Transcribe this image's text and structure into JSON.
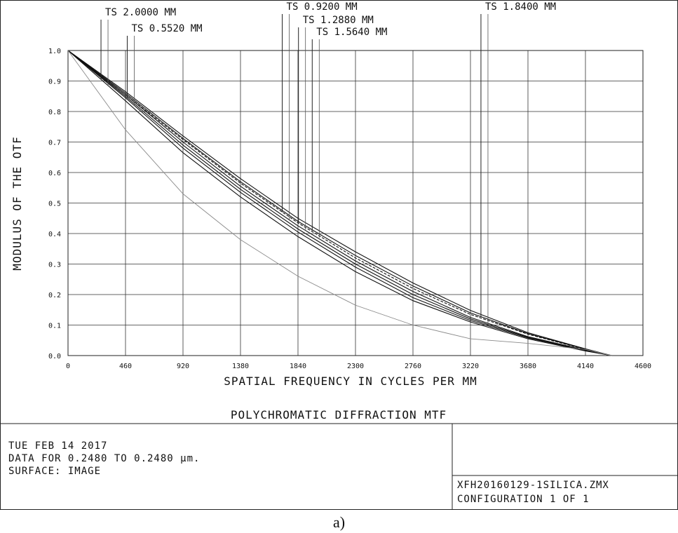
{
  "chart_data": {
    "type": "line",
    "title": "POLYCHROMATIC DIFFRACTION MTF",
    "xlabel": "SPATIAL FREQUENCY IN CYCLES PER MM",
    "ylabel": "MODULUS OF THE OTF",
    "xlim": [
      0,
      4600
    ],
    "ylim": [
      0,
      1.0
    ],
    "x_ticks": [
      "0",
      "460",
      "920",
      "1380",
      "1840",
      "2300",
      "2760",
      "3220",
      "3680",
      "4140",
      "4600"
    ],
    "y_ticks": [
      "0.0",
      "0.1",
      "0.2",
      "0.3",
      "0.4",
      "0.5",
      "0.6",
      "0.7",
      "0.8",
      "0.9",
      "1.0"
    ],
    "grid": true,
    "legend_labels": [
      {
        "text": "TS 2.0000 MM",
        "x": 320
      },
      {
        "text": "TS 0.5520 MM",
        "x": 530
      },
      {
        "text": "TS 0.9200 MM",
        "x": 1770
      },
      {
        "text": "TS 1.2880 MM",
        "x": 1900
      },
      {
        "text": "TS 1.5640 MM",
        "x": 2010
      },
      {
        "text": "TS 1.8400 MM",
        "x": 3360
      }
    ],
    "series": [
      {
        "style": "dashed",
        "x": [
          0,
          460,
          920,
          1380,
          1840,
          2300,
          2760,
          3220,
          3680,
          4140,
          4350
        ],
        "y": [
          1.0,
          0.855,
          0.708,
          0.565,
          0.435,
          0.32,
          0.22,
          0.135,
          0.07,
          0.02,
          0.0
        ]
      },
      {
        "style": "solid",
        "x": [
          0,
          460,
          920,
          1380,
          1840,
          2300,
          2760,
          3220,
          3680,
          4140,
          4350
        ],
        "y": [
          1.0,
          0.865,
          0.72,
          0.58,
          0.45,
          0.34,
          0.238,
          0.148,
          0.075,
          0.022,
          0.0
        ]
      },
      {
        "style": "solid",
        "x": [
          0,
          460,
          920,
          1380,
          1840,
          2300,
          2760,
          3220,
          3680,
          4140,
          4350
        ],
        "y": [
          1.0,
          0.86,
          0.712,
          0.57,
          0.44,
          0.328,
          0.228,
          0.14,
          0.072,
          0.021,
          0.0
        ]
      },
      {
        "style": "solid",
        "x": [
          0,
          460,
          920,
          1380,
          1840,
          2300,
          2760,
          3220,
          3680,
          4140,
          4350
        ],
        "y": [
          1.0,
          0.855,
          0.7,
          0.555,
          0.425,
          0.31,
          0.21,
          0.125,
          0.062,
          0.018,
          0.0
        ]
      },
      {
        "style": "solid",
        "x": [
          0,
          460,
          920,
          1380,
          1840,
          2300,
          2760,
          3220,
          3680,
          4140,
          4350
        ],
        "y": [
          1.0,
          0.85,
          0.69,
          0.545,
          0.415,
          0.3,
          0.2,
          0.12,
          0.06,
          0.017,
          0.0
        ]
      },
      {
        "style": "solid",
        "x": [
          0,
          460,
          920,
          1380,
          1840,
          2300,
          2760,
          3220,
          3680,
          4140,
          4350
        ],
        "y": [
          1.0,
          0.845,
          0.68,
          0.535,
          0.405,
          0.29,
          0.19,
          0.115,
          0.058,
          0.016,
          0.0
        ]
      },
      {
        "style": "solid",
        "x": [
          0,
          460,
          920,
          1380,
          1840,
          2300,
          2760,
          3220,
          3680,
          4140,
          4350
        ],
        "y": [
          1.0,
          0.835,
          0.665,
          0.52,
          0.39,
          0.275,
          0.18,
          0.11,
          0.055,
          0.015,
          0.0
        ]
      },
      {
        "style": "thin-gray",
        "x": [
          0,
          460,
          920,
          1380,
          1840,
          2300,
          2760,
          3220,
          3680,
          4140,
          4350
        ],
        "y": [
          1.0,
          0.74,
          0.53,
          0.38,
          0.26,
          0.165,
          0.1,
          0.055,
          0.04,
          0.02,
          0.0
        ]
      }
    ]
  },
  "footer": {
    "line1": "TUE FEB 14 2017",
    "line2": "DATA FOR 0.2480 TO 0.2480 µm.",
    "line3": "SURFACE: IMAGE",
    "file": "XFH20160129-1SILICA.ZMX",
    "config": "CONFIGURATION 1 OF 1"
  },
  "caption": "a)"
}
